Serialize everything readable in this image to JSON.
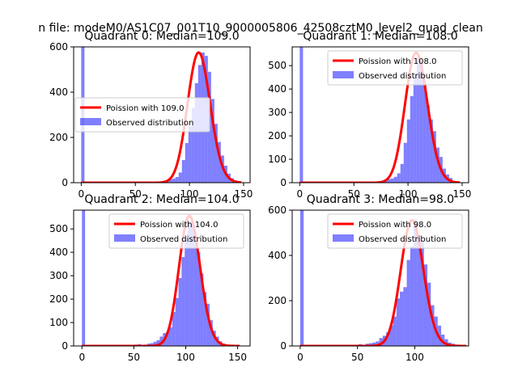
{
  "figure": {
    "suptitle": "n file: modeM0/AS1C07_001T10_9000005806_42508cztM0_level2_quad_clean"
  },
  "colors": {
    "hist": "#0000ff",
    "poisson": "#ff0000"
  },
  "chart_data": [
    {
      "type": "bar",
      "title": "Quadrant 0: Median=109.0",
      "xlim": [
        -7,
        156
      ],
      "ylim": [
        0,
        600
      ],
      "xticks": [
        0,
        50,
        100,
        150
      ],
      "yticks": [
        0,
        200,
        400,
        600
      ],
      "legend_position": "center-left",
      "series": [
        {
          "name": "Poission with 109.0",
          "kind": "line"
        },
        {
          "name": "Observed distribution",
          "kind": "hist"
        }
      ],
      "hist": {
        "bin_width": 3,
        "bins": [
          [
            0,
            600
          ],
          [
            60,
            2
          ],
          [
            66,
            3
          ],
          [
            69,
            3
          ],
          [
            72,
            5
          ],
          [
            75,
            8
          ],
          [
            78,
            10
          ],
          [
            81,
            15
          ],
          [
            84,
            18
          ],
          [
            87,
            25
          ],
          [
            90,
            45
          ],
          [
            93,
            100
          ],
          [
            96,
            175
          ],
          [
            99,
            250
          ],
          [
            102,
            330
          ],
          [
            105,
            440
          ],
          [
            108,
            520
          ],
          [
            111,
            575
          ],
          [
            114,
            560
          ],
          [
            117,
            490
          ],
          [
            120,
            370
          ],
          [
            123,
            260
          ],
          [
            126,
            180
          ],
          [
            129,
            120
          ],
          [
            132,
            75
          ],
          [
            135,
            40
          ],
          [
            138,
            20
          ],
          [
            141,
            10
          ],
          [
            144,
            5
          ]
        ]
      },
      "poisson": {
        "mean": 109.0,
        "peak": 575,
        "x_range": [
          0,
          148
        ]
      }
    },
    {
      "type": "bar",
      "title": "Quadrant 1: Median=108.0",
      "xlim": [
        -7,
        156
      ],
      "ylim": [
        0,
        580
      ],
      "xticks": [
        0,
        50,
        100,
        150
      ],
      "yticks": [
        0,
        100,
        200,
        300,
        400,
        500
      ],
      "legend_position": "top-right",
      "series": [
        {
          "name": "Poission with 108.0",
          "kind": "line"
        },
        {
          "name": "Observed distribution",
          "kind": "hist"
        }
      ],
      "hist": {
        "bin_width": 3,
        "bins": [
          [
            0,
            580
          ],
          [
            66,
            3
          ],
          [
            72,
            5
          ],
          [
            75,
            8
          ],
          [
            78,
            10
          ],
          [
            81,
            15
          ],
          [
            84,
            18
          ],
          [
            87,
            25
          ],
          [
            90,
            40
          ],
          [
            93,
            80
          ],
          [
            96,
            170
          ],
          [
            99,
            270
          ],
          [
            102,
            370
          ],
          [
            105,
            460
          ],
          [
            108,
            540
          ],
          [
            111,
            500
          ],
          [
            114,
            430
          ],
          [
            117,
            330
          ],
          [
            120,
            270
          ],
          [
            123,
            220
          ],
          [
            126,
            150
          ],
          [
            129,
            110
          ],
          [
            132,
            60
          ],
          [
            135,
            35
          ],
          [
            138,
            20
          ],
          [
            141,
            8
          ],
          [
            144,
            3
          ]
        ]
      },
      "poisson": {
        "mean": 108.0,
        "peak": 555,
        "x_range": [
          0,
          148
        ]
      }
    },
    {
      "type": "bar",
      "title": "Quadrant 2: Median=104.0",
      "xlim": [
        -8,
        162
      ],
      "ylim": [
        0,
        580
      ],
      "xticks": [
        0,
        50,
        100,
        150
      ],
      "yticks": [
        0,
        100,
        200,
        300,
        400,
        500
      ],
      "legend_position": "top-right",
      "series": [
        {
          "name": "Poission with 104.0",
          "kind": "line"
        },
        {
          "name": "Observed distribution",
          "kind": "hist"
        }
      ],
      "hist": {
        "bin_width": 3,
        "bins": [
          [
            0,
            580
          ],
          [
            45,
            3
          ],
          [
            48,
            5
          ],
          [
            51,
            6
          ],
          [
            54,
            8
          ],
          [
            57,
            5
          ],
          [
            60,
            6
          ],
          [
            63,
            10
          ],
          [
            66,
            12
          ],
          [
            69,
            18
          ],
          [
            72,
            25
          ],
          [
            75,
            40
          ],
          [
            78,
            55
          ],
          [
            81,
            60
          ],
          [
            84,
            80
          ],
          [
            87,
            145
          ],
          [
            90,
            205
          ],
          [
            93,
            290
          ],
          [
            96,
            380
          ],
          [
            99,
            460
          ],
          [
            102,
            530
          ],
          [
            105,
            520
          ],
          [
            108,
            470
          ],
          [
            111,
            400
          ],
          [
            114,
            310
          ],
          [
            117,
            230
          ],
          [
            120,
            180
          ],
          [
            123,
            110
          ],
          [
            126,
            65
          ],
          [
            129,
            40
          ],
          [
            132,
            20
          ],
          [
            135,
            10
          ],
          [
            138,
            5
          ],
          [
            141,
            3
          ]
        ]
      },
      "poisson": {
        "mean": 104.0,
        "peak": 555,
        "x_range": [
          0,
          152
        ]
      }
    },
    {
      "type": "bar",
      "title": "Quadrant 3: Median=98.0",
      "xlim": [
        -7,
        147
      ],
      "ylim": [
        0,
        600
      ],
      "xticks": [
        0,
        50,
        100
      ],
      "yticks": [
        0,
        200,
        400,
        600
      ],
      "legend_position": "top-right",
      "series": [
        {
          "name": "Poission with 98.0",
          "kind": "line"
        },
        {
          "name": "Observed distribution",
          "kind": "hist"
        }
      ],
      "hist": {
        "bin_width": 3,
        "bins": [
          [
            0,
            600
          ],
          [
            42,
            3
          ],
          [
            48,
            5
          ],
          [
            51,
            8
          ],
          [
            57,
            10
          ],
          [
            60,
            12
          ],
          [
            63,
            15
          ],
          [
            66,
            20
          ],
          [
            69,
            35
          ],
          [
            72,
            45
          ],
          [
            75,
            60
          ],
          [
            78,
            90
          ],
          [
            81,
            130
          ],
          [
            84,
            210
          ],
          [
            87,
            240
          ],
          [
            90,
            260
          ],
          [
            93,
            380
          ],
          [
            96,
            440
          ],
          [
            99,
            560
          ],
          [
            102,
            490
          ],
          [
            105,
            460
          ],
          [
            108,
            360
          ],
          [
            111,
            280
          ],
          [
            114,
            180
          ],
          [
            117,
            130
          ],
          [
            120,
            90
          ],
          [
            123,
            50
          ],
          [
            126,
            30
          ],
          [
            129,
            15
          ],
          [
            132,
            10
          ],
          [
            135,
            5
          ]
        ]
      },
      "poisson": {
        "mean": 98.0,
        "peak": 555,
        "x_range": [
          0,
          145
        ]
      }
    }
  ]
}
